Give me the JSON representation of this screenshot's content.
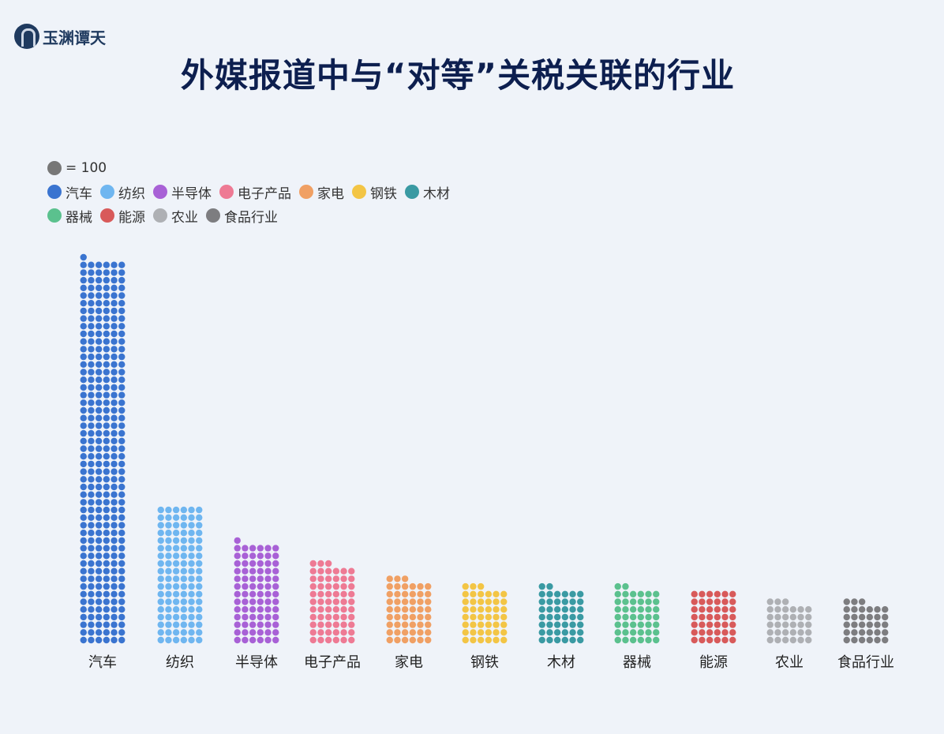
{
  "logo": {
    "text": "玉渊谭天"
  },
  "chart_data": {
    "type": "waffle-column",
    "title": "外媒报道中与“对等”关税关联的行业",
    "unit_label": "= 100",
    "unit_value": 100,
    "unit_color": "#777777",
    "columns_per_stack": 6,
    "legend_placement": "top-left",
    "categories": [
      "汽车",
      "纺织",
      "半导体",
      "电子产品",
      "家电",
      "钢铁",
      "木材",
      "器械",
      "能源",
      "农业",
      "食品行业"
    ],
    "dots": [
      301,
      108,
      79,
      63,
      51,
      45,
      44,
      44,
      42,
      33,
      33
    ],
    "values": [
      30100,
      10800,
      7900,
      6300,
      5100,
      4500,
      4400,
      4400,
      4200,
      3300,
      3300
    ],
    "colors": [
      "#3a74d0",
      "#6fb6f0",
      "#a861d6",
      "#ee7a94",
      "#f0a064",
      "#f3c545",
      "#3a9aa3",
      "#5bc18e",
      "#d85a5a",
      "#aeb0b4",
      "#7d7d80"
    ]
  }
}
